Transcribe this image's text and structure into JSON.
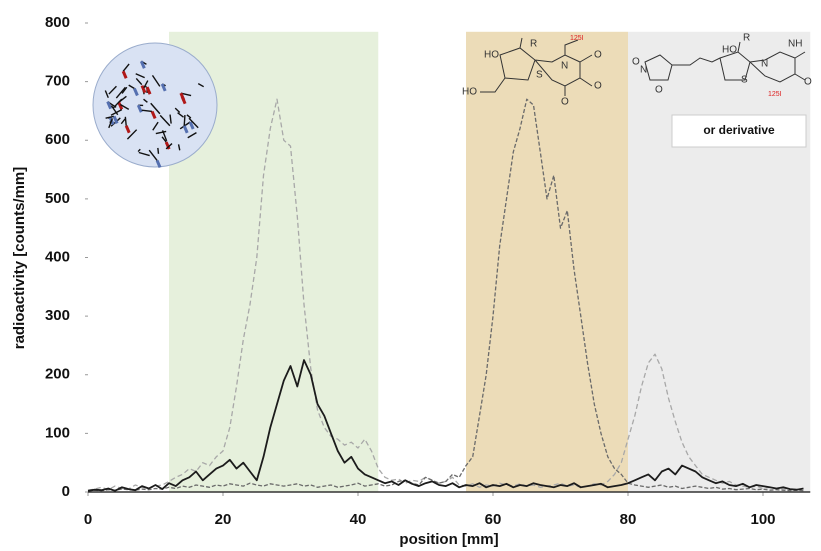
{
  "chart_data": {
    "type": "line",
    "x_label": "position [mm]",
    "y_label": "radioactivity [counts/mm]",
    "xlim": [
      0,
      107
    ],
    "ylim": [
      0,
      800
    ],
    "xticks": [
      0,
      20,
      40,
      60,
      80,
      100
    ],
    "yticks": [
      0,
      100,
      200,
      300,
      400,
      500,
      600,
      700,
      800
    ],
    "bands": [
      {
        "start": 12,
        "end": 43,
        "top": 785,
        "color": "#e6f0dc"
      },
      {
        "start": 56,
        "end": 80,
        "top": 785,
        "color": "#ecdcb8"
      },
      {
        "start": 80,
        "end": 107,
        "top": 785,
        "color": "#ececec"
      }
    ],
    "annotations": [
      "or derivative",
      "HO",
      "R",
      "S",
      "N",
      "NH",
      "O",
      "125I"
    ],
    "x": [
      0,
      1,
      2,
      3,
      4,
      5,
      6,
      7,
      8,
      9,
      10,
      11,
      12,
      13,
      14,
      15,
      16,
      17,
      18,
      19,
      20,
      21,
      22,
      23,
      24,
      25,
      26,
      27,
      28,
      29,
      30,
      31,
      32,
      33,
      34,
      35,
      36,
      37,
      38,
      39,
      40,
      41,
      42,
      43,
      44,
      45,
      46,
      47,
      48,
      49,
      50,
      51,
      52,
      53,
      54,
      55,
      56,
      57,
      58,
      59,
      60,
      61,
      62,
      63,
      64,
      65,
      66,
      67,
      68,
      69,
      70,
      71,
      72,
      73,
      74,
      75,
      76,
      77,
      78,
      79,
      80,
      81,
      82,
      83,
      84,
      85,
      86,
      87,
      88,
      89,
      90,
      91,
      92,
      93,
      94,
      95,
      96,
      97,
      98,
      99,
      100,
      101,
      102,
      103,
      104,
      105,
      106
    ],
    "series": [
      {
        "color": "#a8a8a8",
        "dash": "5,3",
        "width": 1.3,
        "values": [
          3,
          5,
          8,
          4,
          10,
          6,
          5,
          12,
          8,
          6,
          10,
          12,
          18,
          25,
          30,
          40,
          35,
          50,
          45,
          60,
          70,
          110,
          180,
          260,
          320,
          400,
          540,
          620,
          670,
          600,
          590,
          470,
          320,
          210,
          140,
          110,
          95,
          90,
          80,
          85,
          75,
          90,
          70,
          40,
          25,
          20,
          22,
          15,
          20,
          18,
          25,
          20,
          15,
          18,
          25,
          12,
          10,
          14,
          8,
          12,
          10,
          15,
          12,
          10,
          14,
          10,
          12,
          8,
          10,
          12,
          15,
          10,
          12,
          8,
          10,
          14,
          12,
          18,
          30,
          50,
          90,
          130,
          180,
          220,
          235,
          210,
          160,
          120,
          85,
          60,
          45,
          30,
          25,
          20,
          15,
          18,
          12,
          10,
          8,
          10,
          6,
          8,
          5,
          6,
          4,
          5,
          3
        ]
      },
      {
        "color": "#6a6a6a",
        "dash": "4,2",
        "width": 1.3,
        "values": [
          2,
          3,
          2,
          4,
          3,
          5,
          4,
          3,
          5,
          4,
          6,
          5,
          8,
          6,
          10,
          8,
          12,
          10,
          8,
          12,
          10,
          14,
          12,
          10,
          15,
          12,
          10,
          14,
          12,
          10,
          12,
          14,
          10,
          12,
          8,
          10,
          12,
          8,
          10,
          12,
          15,
          10,
          12,
          14,
          10,
          12,
          18,
          20,
          15,
          12,
          25,
          20,
          15,
          18,
          30,
          25,
          45,
          60,
          130,
          200,
          300,
          420,
          500,
          580,
          620,
          670,
          660,
          580,
          500,
          540,
          450,
          480,
          380,
          300,
          220,
          150,
          100,
          60,
          40,
          30,
          15,
          12,
          10,
          8,
          10,
          12,
          8,
          10,
          6,
          8,
          10,
          8,
          6,
          8,
          5,
          6,
          4,
          5,
          6,
          4,
          5,
          3,
          4,
          3,
          2,
          3,
          2
        ]
      },
      {
        "color": "#1c1c1c",
        "dash": "",
        "width": 1.8,
        "values": [
          2,
          4,
          3,
          6,
          2,
          8,
          5,
          3,
          10,
          6,
          12,
          5,
          15,
          10,
          20,
          25,
          35,
          20,
          30,
          40,
          45,
          55,
          40,
          50,
          35,
          20,
          60,
          110,
          150,
          190,
          215,
          180,
          225,
          200,
          150,
          130,
          100,
          70,
          50,
          60,
          40,
          30,
          25,
          20,
          15,
          18,
          12,
          20,
          14,
          10,
          15,
          18,
          12,
          10,
          15,
          8,
          12,
          10,
          15,
          8,
          12,
          10,
          14,
          8,
          12,
          10,
          15,
          12,
          10,
          8,
          12,
          10,
          15,
          8,
          10,
          12,
          14,
          8,
          10,
          12,
          15,
          20,
          25,
          30,
          20,
          35,
          40,
          30,
          45,
          40,
          35,
          25,
          20,
          15,
          18,
          12,
          10,
          14,
          8,
          12,
          10,
          8,
          6,
          8,
          5,
          4,
          6
        ]
      }
    ]
  }
}
